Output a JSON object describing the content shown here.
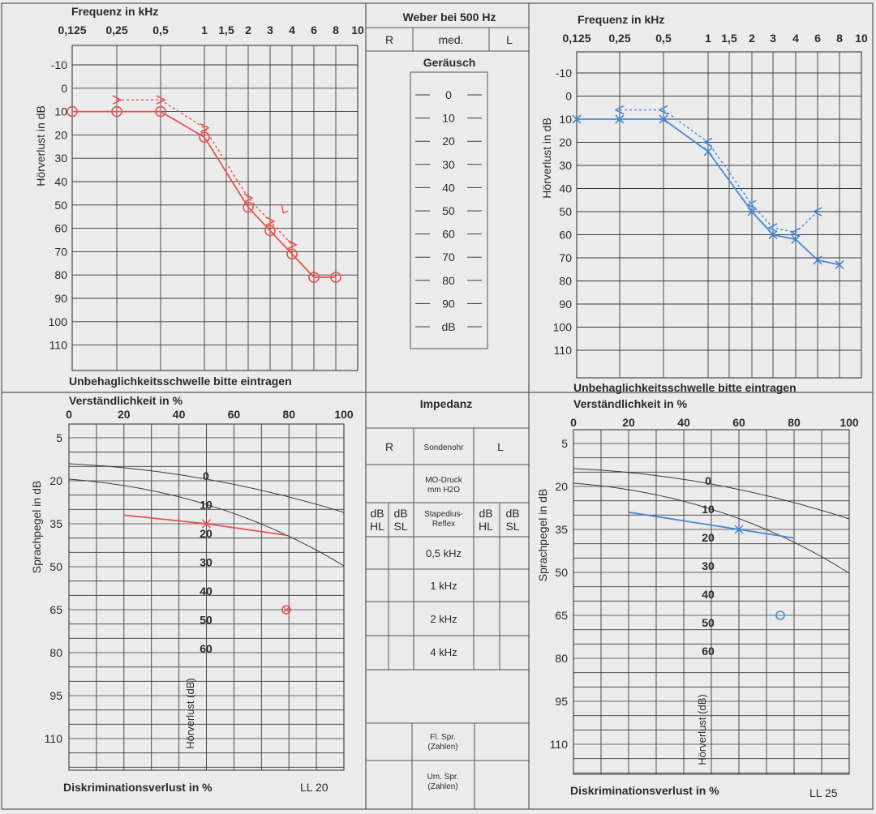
{
  "colors": {
    "paper": "#ededee",
    "grid": "#3a3a3a",
    "right_ear": "#e8534f",
    "left_ear": "#4a86d6"
  },
  "audiogram": {
    "freq_title": "Frequenz in kHz",
    "y_title": "Hörverlust in dB",
    "footer": "Unbehaglichkeitsschwelle bitte eintragen",
    "freq_labels": [
      "0,125",
      "0,25",
      "0,5",
      "1",
      "1,5",
      "2",
      "3",
      "4",
      "6",
      "8",
      "10"
    ]
  },
  "weber": {
    "title": "Weber bei 500 Hz",
    "r": "R",
    "med": "med.",
    "l": "L",
    "noise_title": "Geräusch",
    "levels": [
      "0",
      "10",
      "20",
      "30",
      "40",
      "50",
      "60",
      "70",
      "80",
      "90",
      "dB"
    ]
  },
  "speech": {
    "top_title": "Verständlichkeit in %",
    "y_title": "Sprachpegel in dB",
    "loss_title": "Hörverlust (dB)",
    "footer": "Diskriminationsverlust in %",
    "ll_right": "LL 20",
    "ll_left": "LL 25"
  },
  "impedance": {
    "title": "Impedanz",
    "r": "R",
    "probe": "Sondenohr",
    "l": "L",
    "pressure": [
      "MO-Druck",
      "mm H2O"
    ],
    "db_hl": [
      "dB",
      "HL"
    ],
    "db_sl": [
      "dB",
      "SL"
    ],
    "reflex": [
      "Stapedius-",
      "Reflex"
    ],
    "freqs": [
      "0,5 kHz",
      "1 kHz",
      "2 kHz",
      "4 kHz"
    ],
    "fl_spr": [
      "Fl. Spr.",
      "(Zahlen)"
    ],
    "um_spr": [
      "Um. Spr.",
      "(Zahlen)"
    ]
  },
  "chart_data": [
    {
      "type": "line",
      "ear": "right",
      "title": "Frequenz in kHz",
      "xlabel": "Frequenz in kHz",
      "ylabel": "Hörverlust in dB",
      "x_ticks": [
        "0,125",
        "0,25",
        "0,5",
        "1",
        "1,5",
        "2",
        "3",
        "4",
        "6",
        "8",
        "10"
      ],
      "y_ticks": [
        -10,
        0,
        10,
        20,
        30,
        40,
        50,
        60,
        70,
        80,
        90,
        100,
        110
      ],
      "ylim": [
        -20,
        120
      ],
      "series": [
        {
          "kind": "air",
          "points": [
            [
              0.125,
              10
            ],
            [
              0.25,
              10
            ],
            [
              0.5,
              10
            ],
            [
              1,
              21
            ],
            [
              2,
              51
            ],
            [
              3,
              61
            ],
            [
              4,
              71
            ],
            [
              6,
              81
            ],
            [
              8,
              81
            ]
          ]
        },
        {
          "kind": "bone",
          "points": [
            [
              0.25,
              5
            ],
            [
              0.5,
              5
            ],
            [
              1,
              17
            ],
            [
              2,
              47
            ],
            [
              3,
              57
            ],
            [
              4,
              67
            ]
          ]
        },
        {
          "kind": "bone-masked",
          "points": [
            [
              3.6,
              52
            ]
          ]
        }
      ]
    },
    {
      "type": "line",
      "ear": "left",
      "title": "Frequenz in kHz",
      "xlabel": "Frequenz in kHz",
      "ylabel": "Hörverlust in dB",
      "x_ticks": [
        "0,125",
        "0,25",
        "0,5",
        "1",
        "1,5",
        "2",
        "3",
        "4",
        "6",
        "8",
        "10"
      ],
      "y_ticks": [
        -10,
        0,
        10,
        20,
        30,
        40,
        50,
        60,
        70,
        80,
        90,
        100,
        110
      ],
      "ylim": [
        -20,
        120
      ],
      "series": [
        {
          "kind": "air",
          "points": [
            [
              0.125,
              10
            ],
            [
              0.25,
              10
            ],
            [
              0.5,
              10
            ],
            [
              1,
              24
            ],
            [
              2,
              50
            ],
            [
              3,
              60
            ],
            [
              4,
              62
            ],
            [
              6,
              71
            ],
            [
              8,
              73
            ]
          ]
        },
        {
          "kind": "bone",
          "points": [
            [
              0.25,
              6
            ],
            [
              0.5,
              6
            ],
            [
              1,
              20
            ],
            [
              2,
              47
            ],
            [
              3,
              57
            ],
            [
              4,
              59
            ],
            [
              6,
              50
            ]
          ]
        }
      ]
    },
    {
      "type": "line",
      "ear": "right",
      "title": "Verständlichkeit in %",
      "xlabel": "Verständlichkeit in %",
      "ylabel": "Sprachpegel in dB",
      "x_ticks": [
        0,
        20,
        40,
        60,
        80,
        100
      ],
      "y_ticks": [
        5,
        20,
        35,
        50,
        65,
        80,
        95,
        110
      ],
      "loss_labels": [
        "0",
        "10",
        "20",
        "30",
        "40",
        "50",
        "60"
      ],
      "series": [
        {
          "kind": "numbers",
          "points": [
            [
              20,
              32
            ],
            [
              50,
              35
            ],
            [
              79,
              39
            ]
          ]
        },
        {
          "kind": "words",
          "points": [
            [
              79,
              65
            ]
          ]
        }
      ]
    },
    {
      "type": "line",
      "ear": "left",
      "title": "Verständlichkeit in %",
      "xlabel": "Verständlichkeit in %",
      "ylabel": "Sprachpegel in dB",
      "x_ticks": [
        0,
        20,
        40,
        60,
        80,
        100
      ],
      "y_ticks": [
        5,
        20,
        35,
        50,
        65,
        80,
        95,
        110
      ],
      "loss_labels": [
        "0",
        "10",
        "20",
        "30",
        "40",
        "50",
        "60"
      ],
      "series": [
        {
          "kind": "numbers",
          "points": [
            [
              20,
              29
            ],
            [
              60,
              35
            ],
            [
              80,
              38
            ]
          ]
        },
        {
          "kind": "words",
          "points": [
            [
              75,
              65
            ]
          ]
        }
      ]
    }
  ]
}
